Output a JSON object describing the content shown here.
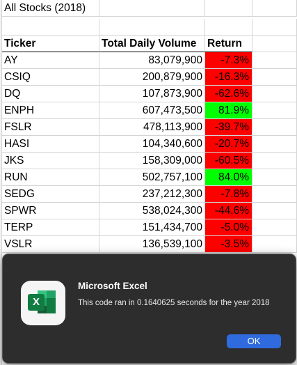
{
  "sheet": {
    "title": "All Stocks (2018)",
    "headers": {
      "ticker": "Ticker",
      "volume": "Total Daily Volume",
      "return": "Return"
    },
    "rows": [
      {
        "ticker": "AY",
        "volume": "83,079,900",
        "return": "-7.3%",
        "status": "negative"
      },
      {
        "ticker": "CSIQ",
        "volume": "200,879,900",
        "return": "-16.3%",
        "status": "negative"
      },
      {
        "ticker": "DQ",
        "volume": "107,873,900",
        "return": "-62.6%",
        "status": "negative"
      },
      {
        "ticker": "ENPH",
        "volume": "607,473,500",
        "return": "81.9%",
        "status": "positive"
      },
      {
        "ticker": "FSLR",
        "volume": "478,113,900",
        "return": "-39.7%",
        "status": "negative"
      },
      {
        "ticker": "HASI",
        "volume": "104,340,600",
        "return": "-20.7%",
        "status": "negative"
      },
      {
        "ticker": "JKS",
        "volume": "158,309,000",
        "return": "-60.5%",
        "status": "negative"
      },
      {
        "ticker": "RUN",
        "volume": "502,757,100",
        "return": "84.0%",
        "status": "positive"
      },
      {
        "ticker": "SEDG",
        "volume": "237,212,300",
        "return": "-7.8%",
        "status": "negative"
      },
      {
        "ticker": "SPWR",
        "volume": "538,024,300",
        "return": "-44.6%",
        "status": "negative"
      },
      {
        "ticker": "TERP",
        "volume": "151,434,700",
        "return": "-5.0%",
        "status": "negative"
      },
      {
        "ticker": "VSLR",
        "volume": "136,539,100",
        "return": "-3.5%",
        "status": "negative"
      }
    ],
    "colors": {
      "negative": "#ff0000",
      "positive": "#00ff00"
    }
  },
  "dialog": {
    "app_name": "Microsoft Excel",
    "message": "This code ran in 0.1640625 seconds for the year 2018",
    "ok_label": "OK",
    "icon": "excel-app-icon",
    "colors": {
      "background": "#2d2d2d",
      "button": "#2f6bdf"
    }
  }
}
